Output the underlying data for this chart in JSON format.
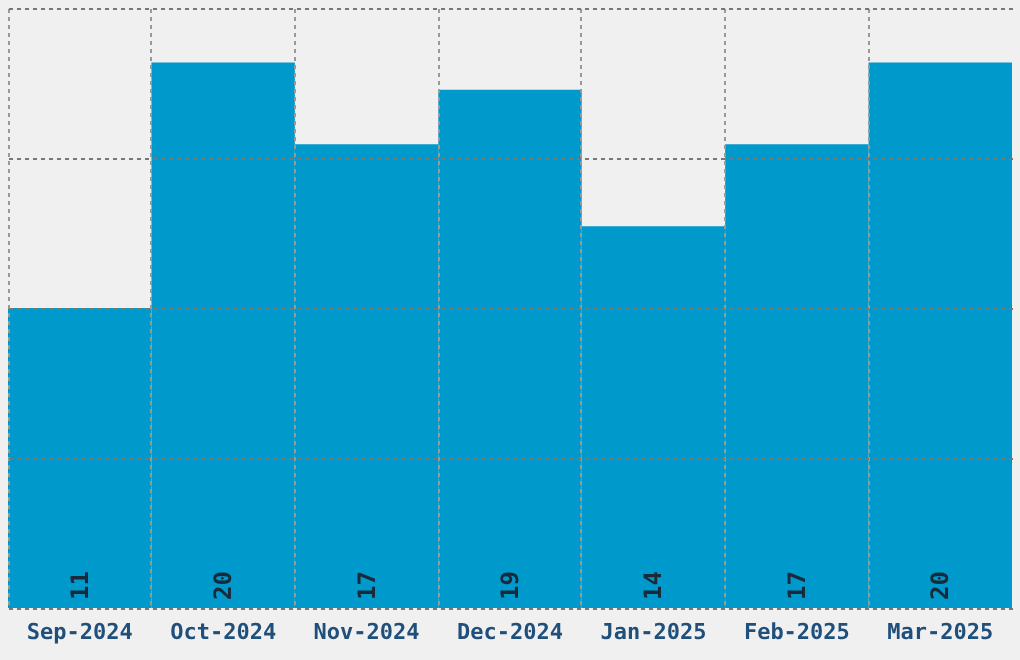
{
  "chart_data": {
    "type": "bar",
    "categories": [
      "Sep-2024",
      "Oct-2024",
      "Nov-2024",
      "Dec-2024",
      "Jan-2025",
      "Feb-2025",
      "Mar-2025"
    ],
    "values": [
      11,
      20,
      17,
      19,
      14,
      17,
      20
    ],
    "color": "#0099cc",
    "ylim": [
      0,
      22
    ],
    "yticks": [
      {
        "value": 0,
        "label": null
      },
      {
        "value": 5.5,
        "label": null
      },
      {
        "value": 11,
        "label": null
      },
      {
        "value": 16.5,
        "label": null
      },
      {
        "value": 22,
        "label": null
      }
    ],
    "grid": true,
    "tick_labels": "x",
    "data_labels": true
  }
}
